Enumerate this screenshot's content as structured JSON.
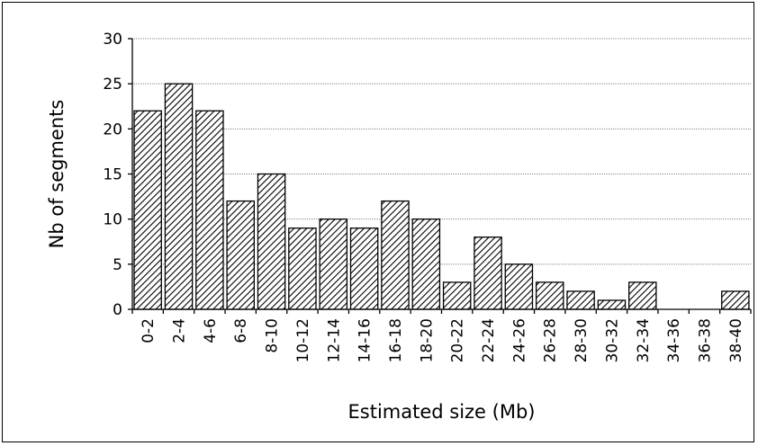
{
  "chart_data": {
    "type": "bar",
    "xlabel": "Estimated size (Mb)",
    "ylabel": "Nb of segments",
    "ylim": [
      0,
      30
    ],
    "yticks": [
      0,
      5,
      10,
      15,
      20,
      25,
      30
    ],
    "grid": true,
    "bar_fill": "diagonal-hatch",
    "categories": [
      "0-2",
      "2-4",
      "4-6",
      "6-8",
      "8-10",
      "10-12",
      "12-14",
      "14-16",
      "16-18",
      "18-20",
      "20-22",
      "22-24",
      "24-26",
      "26-28",
      "28-30",
      "30-32",
      "32-34",
      "34-36",
      "36-38",
      "38-40"
    ],
    "values": [
      22,
      25,
      22,
      12,
      15,
      9,
      10,
      9,
      12,
      10,
      3,
      8,
      5,
      3,
      2,
      1,
      3,
      0,
      0,
      2
    ]
  }
}
